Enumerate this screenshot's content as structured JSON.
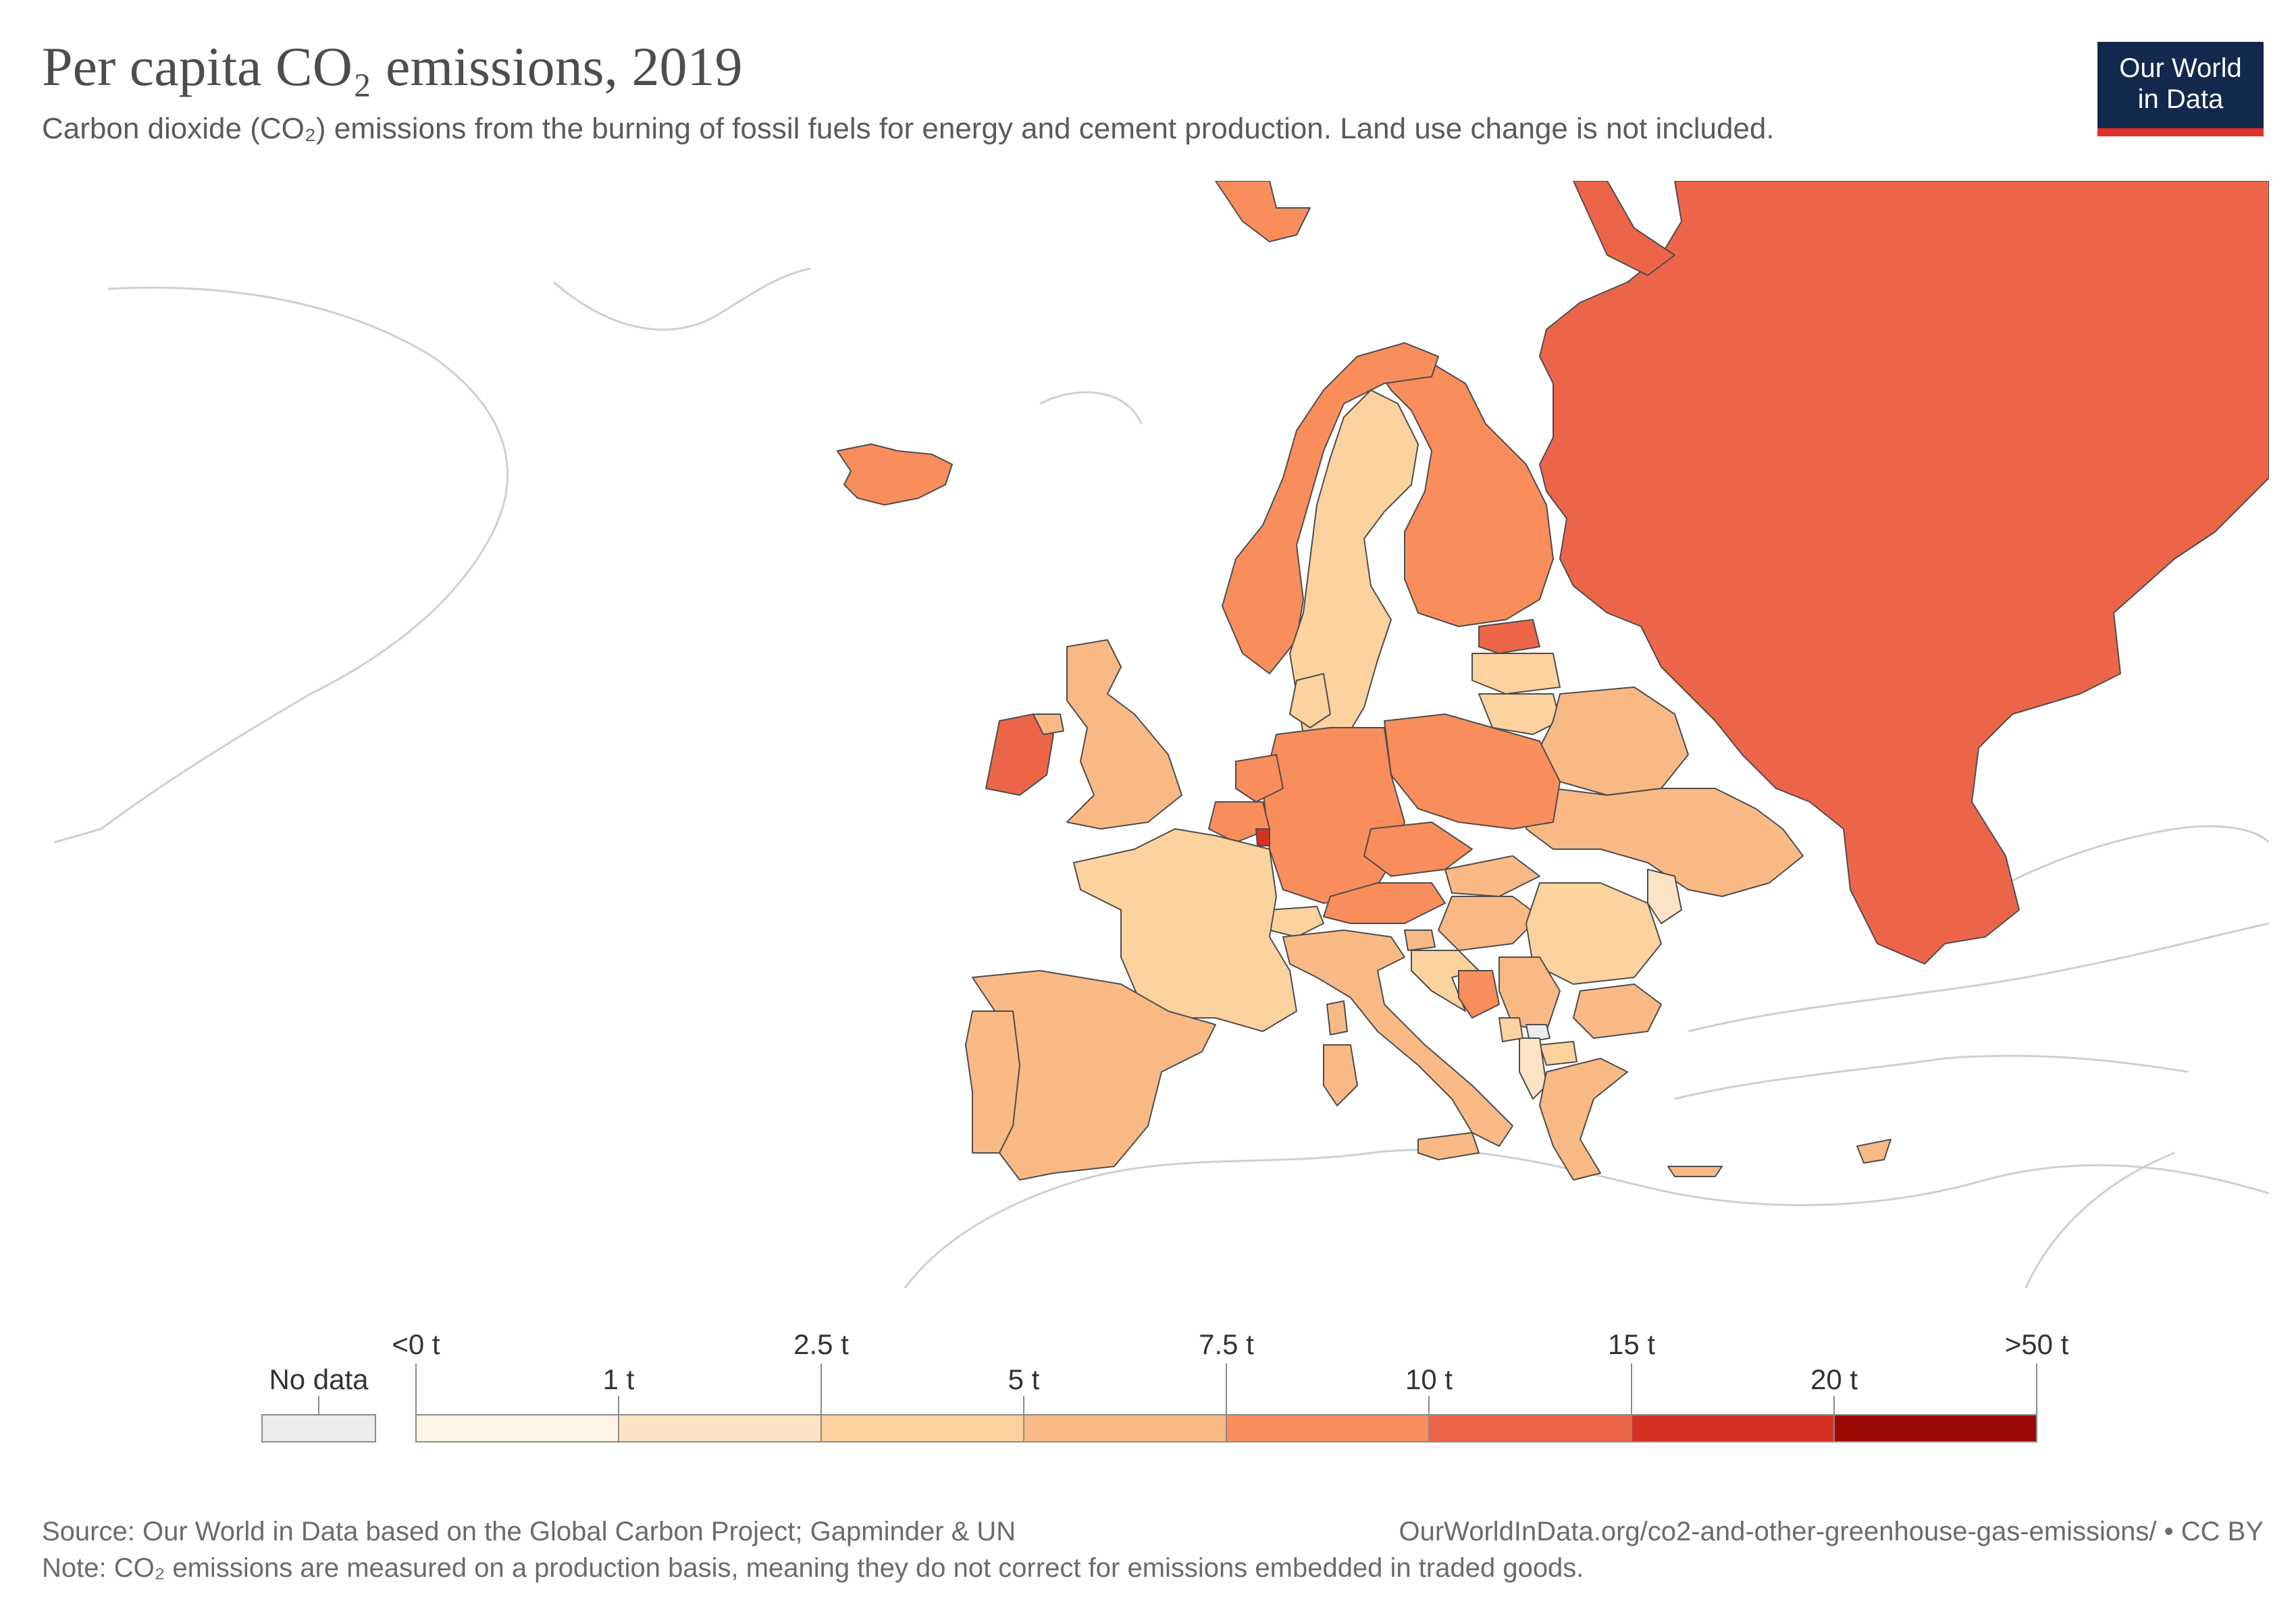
{
  "header": {
    "title": "Per capita CO₂ emissions, 2019",
    "subtitle": "Carbon dioxide (CO₂) emissions from the burning of fossil fuels for energy and cement production. Land use change is not included."
  },
  "logo": {
    "line1": "Our World",
    "line2": "in Data",
    "bg_color": "#12284c",
    "accent_color": "#e0302a"
  },
  "legend": {
    "no_data_label": "No data",
    "no_data_color": "#ececec",
    "bins": [
      {
        "color": "#fff4e6"
      },
      {
        "color": "#fde3c4"
      },
      {
        "color": "#fcd29f"
      },
      {
        "color": "#f9b985"
      },
      {
        "color": "#f98d5b"
      },
      {
        "color": "#ed6548"
      },
      {
        "color": "#d43122"
      },
      {
        "color": "#9c0a06"
      }
    ],
    "ticks_top": [
      "<0 t",
      "2.5 t",
      "7.5 t",
      "15 t",
      ">50 t"
    ],
    "ticks_bottom": [
      "1 t",
      "5 t",
      "10 t",
      "20 t"
    ]
  },
  "footer": {
    "source": "Source: Our World in Data based on the Global Carbon Project; Gapminder & UN",
    "url": "OurWorldInData.org/co2-and-other-greenhouse-gas-emissions/ • CC BY",
    "note": "Note: CO₂ emissions are measured on a production basis, meaning they do not correct for emissions embedded in traded goods."
  },
  "colors": {
    "border": "#4d4d4d",
    "outline_land": "#cfcfcf"
  }
}
